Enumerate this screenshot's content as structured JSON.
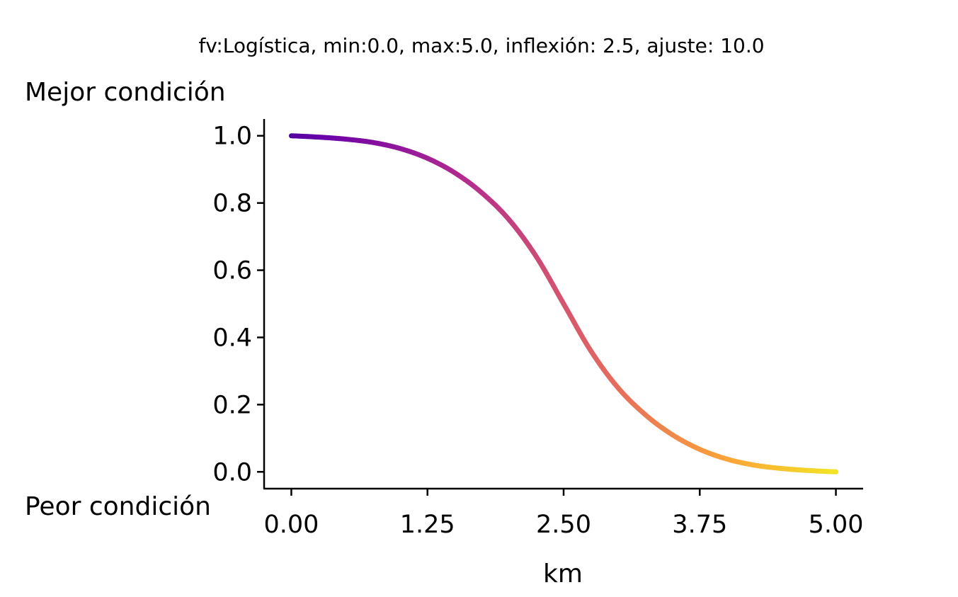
{
  "chart_data": {
    "type": "line",
    "title": "fv:Logística, min:0.0, max:5.0, inflexión: 2.5, ajuste: 10.0",
    "xlabel": "km",
    "ylabel": "",
    "top_label": "Mejor condición",
    "bottom_label": "Peor condición",
    "xlim": [
      -0.25,
      5.25
    ],
    "ylim": [
      -0.05,
      1.05
    ],
    "xticks": [
      "0.00",
      "1.25",
      "2.50",
      "3.75",
      "5.00"
    ],
    "yticks": [
      "0.0",
      "0.2",
      "0.4",
      "0.6",
      "0.8",
      "1.0"
    ],
    "grid": false,
    "colormap": [
      "#0d0887",
      "#6a00a8",
      "#b12a90",
      "#e16462",
      "#fca636",
      "#f0f921"
    ],
    "series": [
      {
        "x": [
          0.0,
          0.25,
          0.5,
          0.75,
          1.0,
          1.25,
          1.5,
          1.75,
          2.0,
          2.25,
          2.5,
          2.75,
          3.0,
          3.25,
          3.5,
          3.75,
          4.0,
          4.25,
          4.5,
          4.75,
          5.0
        ],
        "values": [
          1.0,
          0.996,
          0.99,
          0.98,
          0.962,
          0.933,
          0.89,
          0.83,
          0.75,
          0.64,
          0.5,
          0.36,
          0.25,
          0.17,
          0.11,
          0.067,
          0.038,
          0.02,
          0.01,
          0.004,
          0.0
        ]
      }
    ]
  }
}
